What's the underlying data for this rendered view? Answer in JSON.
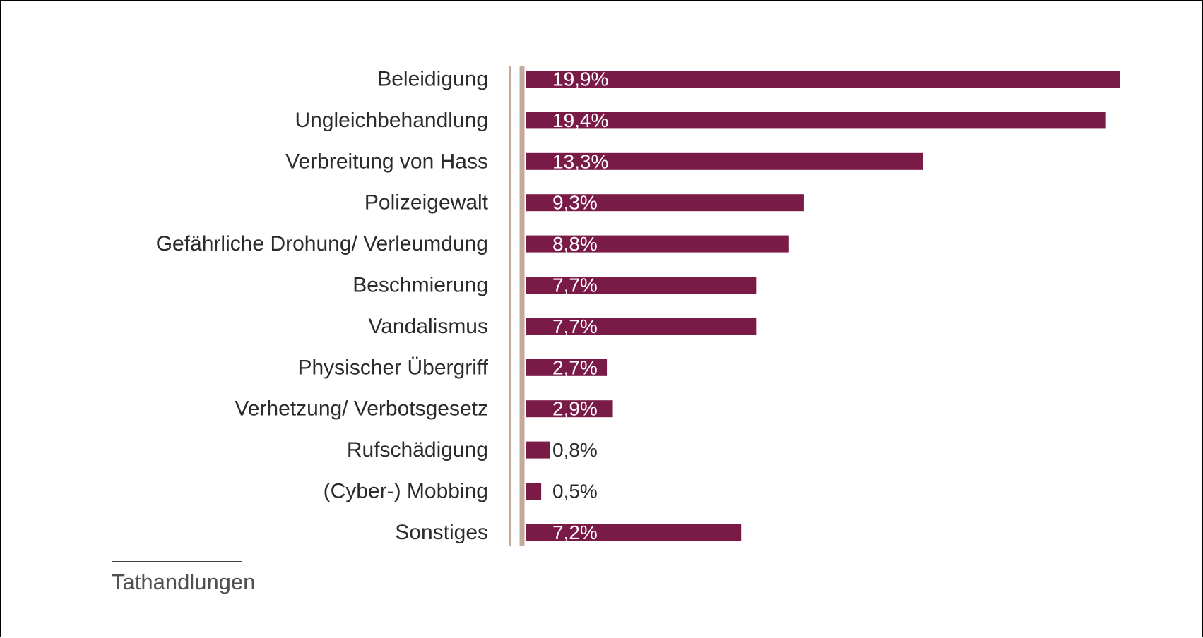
{
  "colors": {
    "bar": "#7a1a47",
    "axis": "#c4a99c",
    "label_inside": "#ffffff",
    "label_outside": "#2b2b2b",
    "category_text": "#2b2b2b"
  },
  "footnote": {
    "text": "Tathandlungen"
  },
  "chart_data": {
    "type": "bar",
    "orientation": "horizontal",
    "categories": [
      "Beleidigung",
      "Ungleichbehandlung",
      "Verbreitung von Hass",
      "Polizeigewalt",
      "Gefährliche Drohung/ Verleumdung",
      "Beschmierung",
      "Vandalismus",
      "Physischer Übergriff",
      "Verhetzung/ Verbotsgesetz",
      "Rufschädigung",
      "(Cyber-) Mobbing",
      "Sonstiges"
    ],
    "values": [
      19.9,
      19.4,
      13.3,
      9.3,
      8.8,
      7.7,
      7.7,
      2.7,
      2.9,
      0.8,
      0.5,
      7.2
    ],
    "value_labels": [
      "19,9%",
      "19,4%",
      "13,3%",
      "9,3%",
      "8,8%",
      "7,7%",
      "7,7%",
      "2,7%",
      "2,9%",
      "0,8%",
      "0,5%",
      "7,2%"
    ],
    "unit": "%",
    "xlim": [
      0,
      20
    ],
    "grid": false,
    "legend": "none",
    "title": "",
    "xlabel": "",
    "ylabel": ""
  }
}
